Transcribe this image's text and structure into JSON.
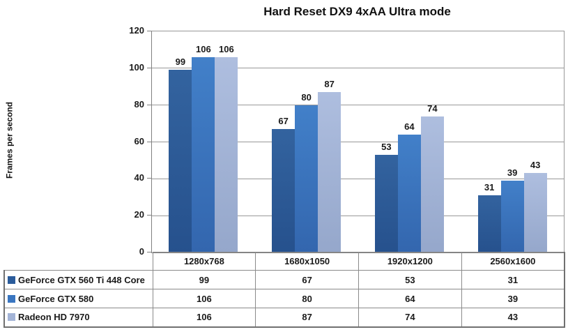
{
  "chart_data": {
    "type": "bar",
    "title": "Hard Reset DX9 4xAA Ultra mode",
    "ylabel": "Frames per second",
    "xlabel": "",
    "ylim": [
      0,
      120
    ],
    "yticks": [
      0,
      20,
      40,
      60,
      80,
      100,
      120
    ],
    "grid": true,
    "legend_position": "data-table-left",
    "data_labels": true,
    "categories": [
      "1280x768",
      "1680x1050",
      "1920x1200",
      "2560x1600"
    ],
    "series": [
      {
        "name": "GeForce GTX 560 Ti 448 Core",
        "values": [
          99,
          67,
          53,
          31
        ],
        "color": "#2B5C9B",
        "color_top": "#33639F",
        "color_bottom": "#26518D"
      },
      {
        "name": "GeForce GTX 580",
        "values": [
          106,
          80,
          64,
          39
        ],
        "color": "#3A76C1",
        "color_top": "#4280C9",
        "color_bottom": "#3366AE"
      },
      {
        "name": "Radeon HD 7970",
        "values": [
          106,
          87,
          74,
          43
        ],
        "color": "#A3B4D7",
        "color_top": "#AEBEDF",
        "color_bottom": "#95A7CB"
      }
    ],
    "colors": {
      "gridline": "#989898",
      "axis": "#808080",
      "table_border_inner": "#8A8A8A",
      "table_border_outer": "#707070",
      "text": "#1A1A1A",
      "background": "#FFFFFF"
    }
  }
}
